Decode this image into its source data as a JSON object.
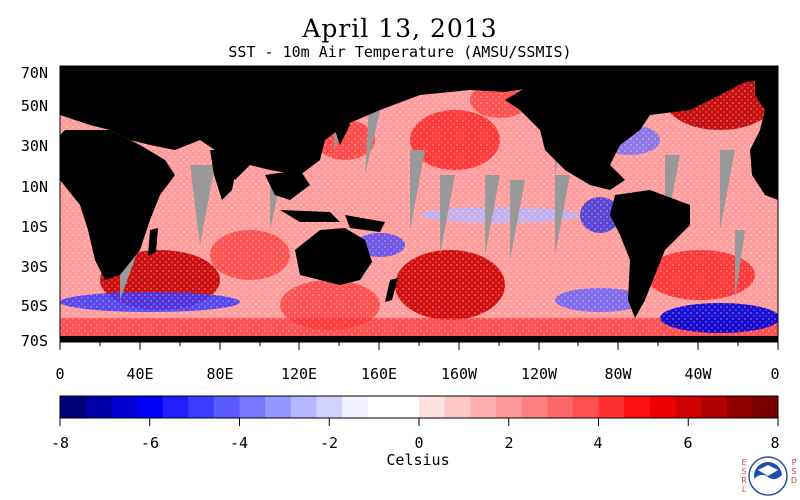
{
  "title": "April 13, 2013",
  "subtitle": "SST - 10m Air Temperature (AMSU/SSMIS)",
  "lat_labels": [
    "70N",
    "50N",
    "30N",
    "10N",
    "10S",
    "30S",
    "50S",
    "70S"
  ],
  "lon_labels": [
    "0",
    "40E",
    "80E",
    "120E",
    "160E",
    "160W",
    "120W",
    "80W",
    "40W",
    "0"
  ],
  "colorbar": {
    "ticks": [
      "-8",
      "-6",
      "-4",
      "-2",
      "0",
      "2",
      "4",
      "6",
      "8"
    ],
    "units": "Celsius",
    "range": [
      -8,
      8
    ],
    "colors": [
      "#00007a",
      "#0000a8",
      "#0000d0",
      "#0000f5",
      "#1e1eff",
      "#3c3cff",
      "#5a5aff",
      "#7878ff",
      "#9696ff",
      "#b4b4ff",
      "#d2d2ff",
      "#f0f0ff",
      "#ffffff",
      "#ffffff",
      "#ffe0e0",
      "#ffc8c8",
      "#ffb0b0",
      "#ff9898",
      "#ff8080",
      "#ff6868",
      "#ff5050",
      "#ff3030",
      "#ff1010",
      "#f00000",
      "#d00000",
      "#b00000",
      "#900000",
      "#7a0000"
    ]
  },
  "logo": {
    "name": "noaa-logo",
    "side_left": "ESRL",
    "side_right": "PSD"
  }
}
